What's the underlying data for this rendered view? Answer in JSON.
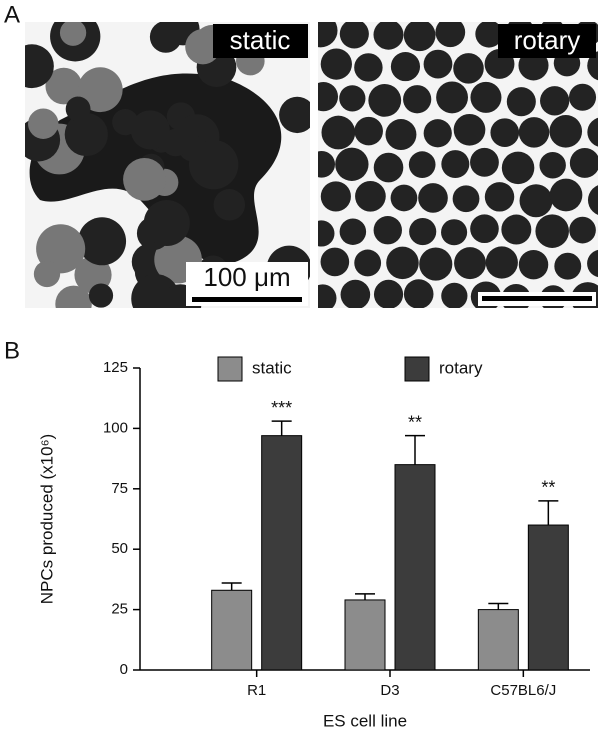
{
  "panel_a": {
    "label": "A",
    "images": [
      {
        "label": "static"
      },
      {
        "label": "rotary"
      }
    ],
    "scale_bar": "100 μm"
  },
  "panel_b": {
    "label": "B"
  },
  "chart_data": {
    "type": "bar",
    "categories": [
      "R1",
      "D3",
      "C57BL6/J"
    ],
    "series": [
      {
        "name": "static",
        "color": "#8c8c8c",
        "values": [
          33,
          29,
          25
        ],
        "errors": [
          3,
          2.5,
          2.5
        ]
      },
      {
        "name": "rotary",
        "color": "#3c3c3c",
        "values": [
          97,
          85,
          60
        ],
        "errors": [
          6,
          12,
          10
        ]
      }
    ],
    "annotations": [
      "***",
      "**",
      "**"
    ],
    "y_label": "NPCs produced (x10⁶)",
    "x_label": "ES cell line",
    "ylim": [
      0,
      125
    ],
    "yticks": [
      0,
      25,
      50,
      75,
      100,
      125
    ],
    "legend": "top"
  }
}
